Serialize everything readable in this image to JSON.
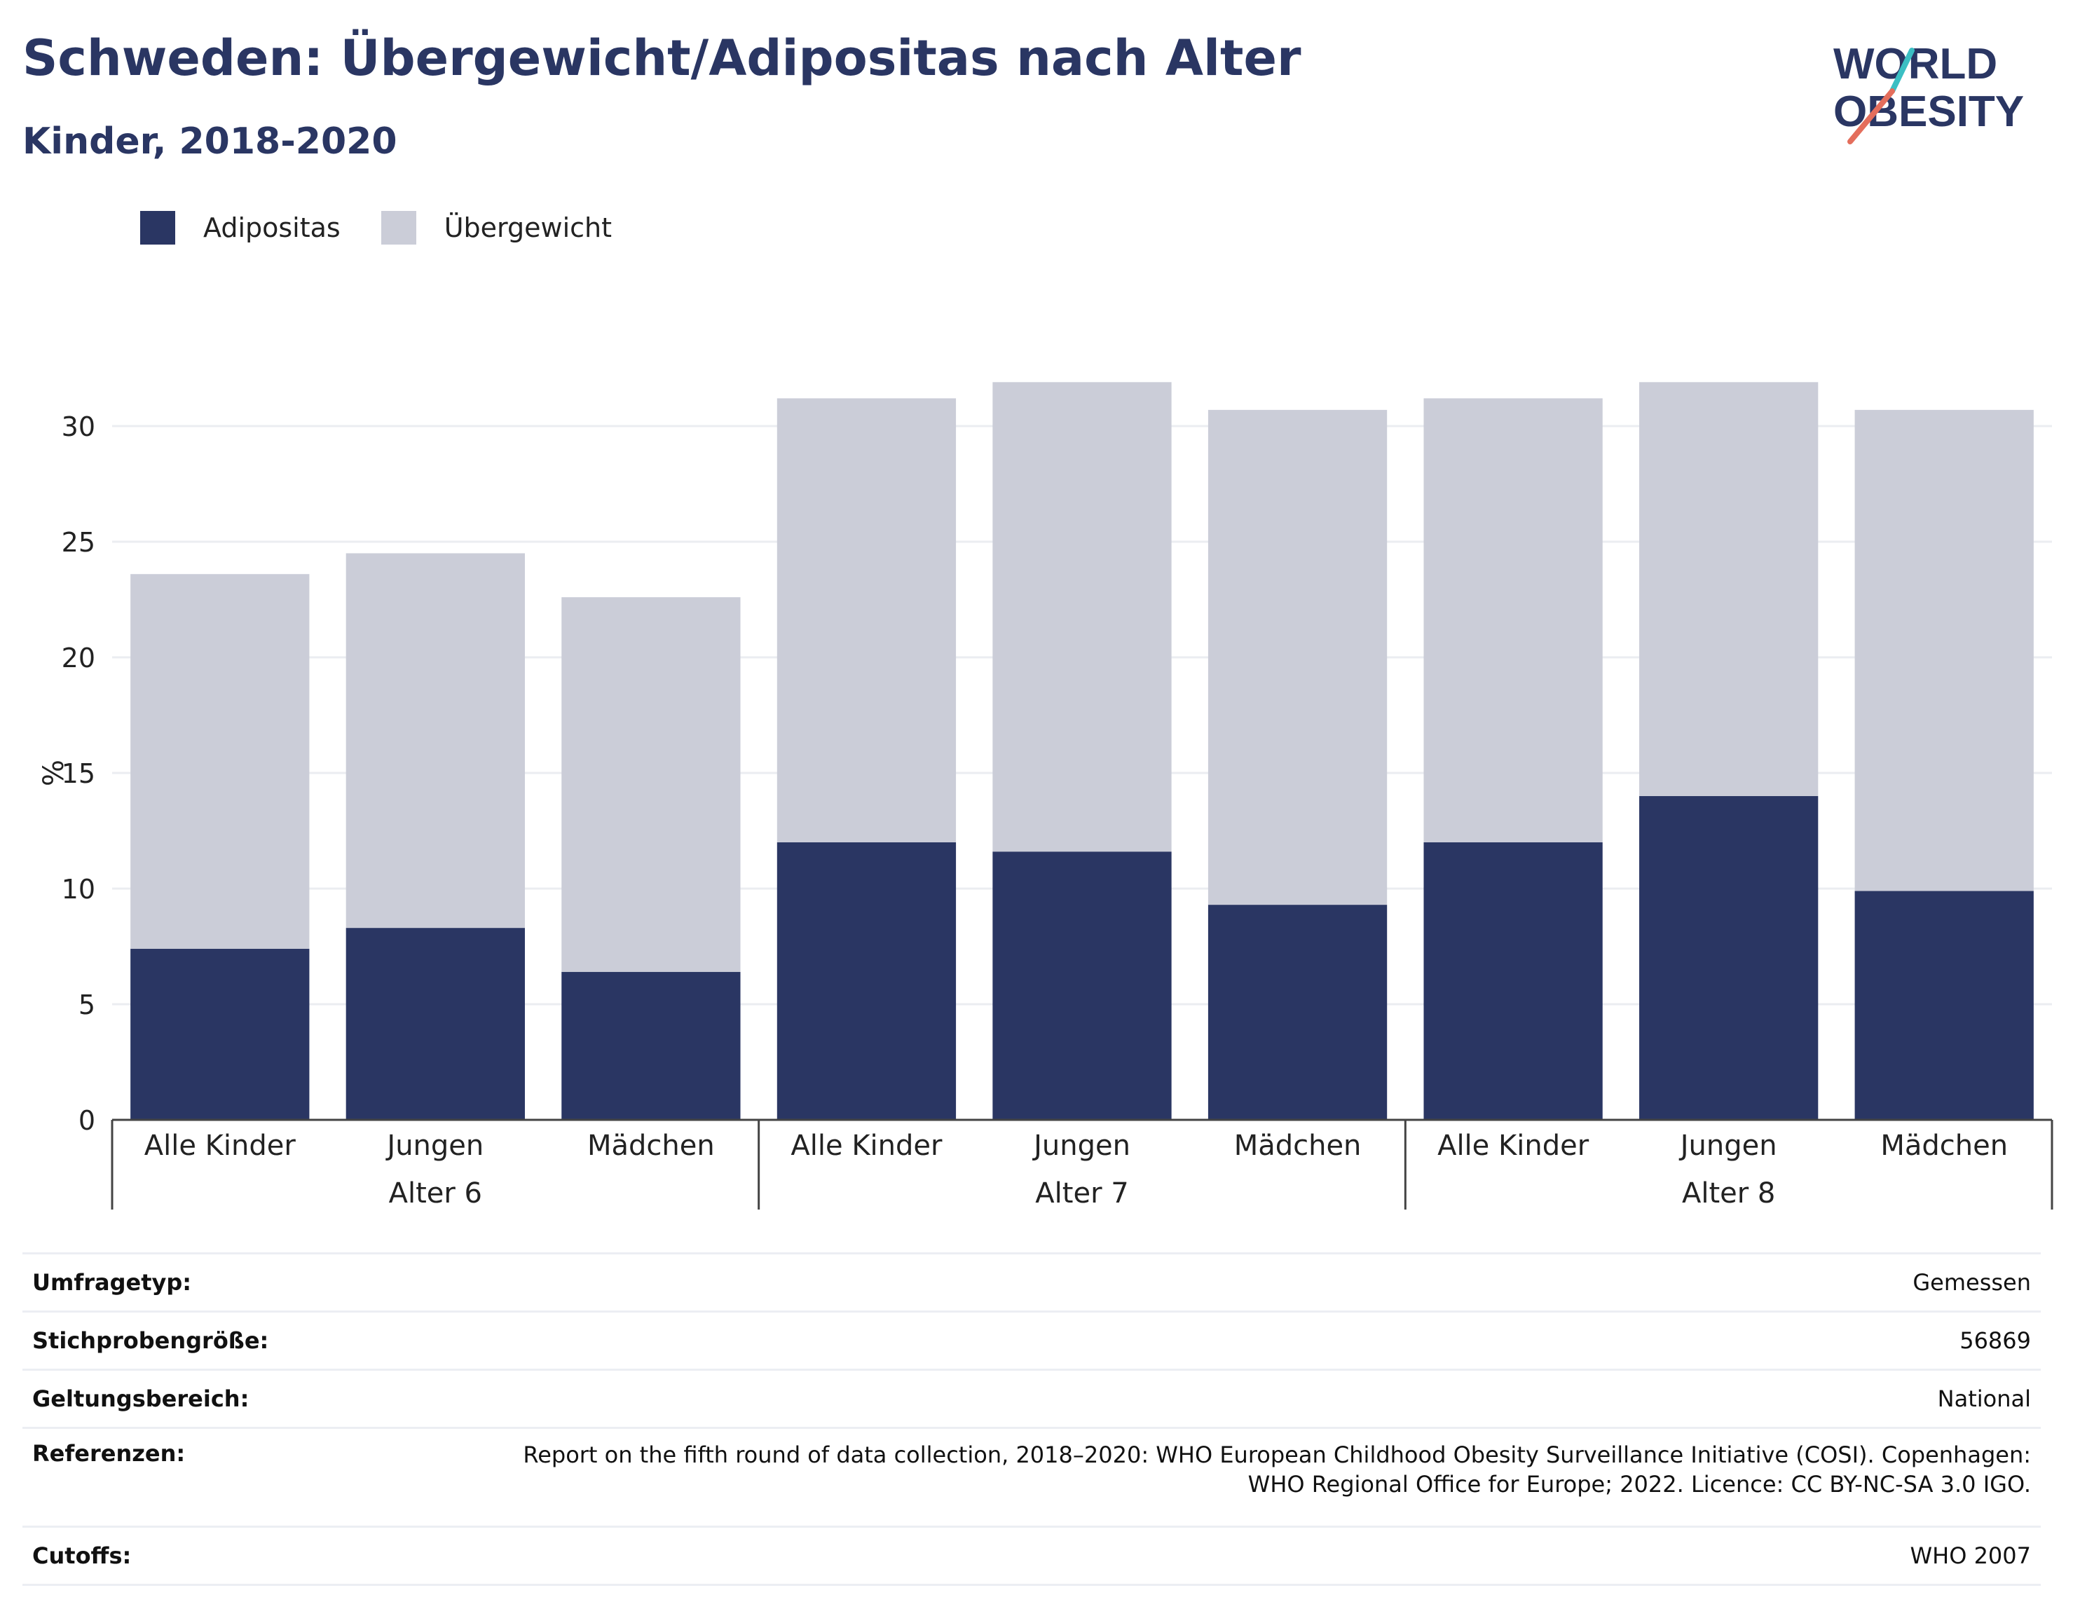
{
  "title": "Schweden: Übergewicht/Adipositas nach Alter",
  "subtitle": "Kinder, 2018-2020",
  "logo": {
    "line1": "WORLD",
    "line2": "OBESITY",
    "accent_colors": [
      "#3bbfc3",
      "#e46e5c"
    ]
  },
  "colors": {
    "adipositas": "#2a3663",
    "uebergewicht": "#cbcdd8",
    "text": "#2a3663"
  },
  "chart_data": {
    "type": "bar",
    "stacked": true,
    "ylabel": "%",
    "ylim": [
      0,
      33
    ],
    "yticks": [
      0,
      5,
      10,
      15,
      20,
      25,
      30
    ],
    "grid": true,
    "legend_position": "top-left",
    "categories": [
      "Alle Kinder",
      "Jungen",
      "Mädchen",
      "Alle Kinder",
      "Jungen",
      "Mädchen",
      "Alle Kinder",
      "Jungen",
      "Mädchen"
    ],
    "groups": [
      {
        "label": "Alter 6",
        "members": 3
      },
      {
        "label": "Alter 7",
        "members": 3
      },
      {
        "label": "Alter 8",
        "members": 3
      }
    ],
    "series": [
      {
        "name": "Adipositas",
        "color": "#2a3663",
        "values": [
          7.4,
          8.3,
          6.4,
          12.0,
          11.6,
          9.3,
          12.0,
          14.0,
          9.9
        ]
      },
      {
        "name": "Übergewicht",
        "color": "#cbcdd8",
        "values": [
          16.2,
          16.2,
          16.2,
          19.2,
          20.3,
          21.4,
          19.2,
          17.9,
          20.8
        ]
      }
    ]
  },
  "meta": [
    {
      "key": "Umfragetyp:",
      "value": "Gemessen"
    },
    {
      "key": "Stichprobengröße:",
      "value": "56869"
    },
    {
      "key": "Geltungsbereich:",
      "value": "National"
    },
    {
      "key": "Referenzen:",
      "value_lines": [
        "Report on the fifth round of data collection, 2018–2020: WHO European Childhood Obesity Surveillance Initiative (COSI). Copenhagen:",
        "WHO Regional Office for Europe; 2022. Licence: CC BY-NC-SA 3.0 IGO."
      ]
    },
    {
      "key": "Cutoffs:",
      "value": "WHO 2007"
    }
  ]
}
